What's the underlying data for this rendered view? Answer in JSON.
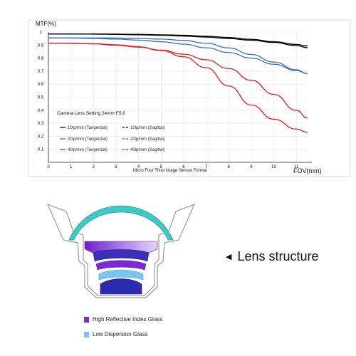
{
  "chart_data": {
    "type": "line",
    "title": "Camera Lens Setting 24mm F5.6",
    "ylabel": "MTF(%)",
    "xlabel": "FOV(mm)",
    "x_axis_caption": "Micro Four Third Image Sensor Format",
    "xlim": [
      0,
      11.5
    ],
    "ylim": [
      0,
      1
    ],
    "x_ticks": [
      "0",
      "1",
      "2",
      "3",
      "4",
      "5",
      "6",
      "7",
      "8",
      "9",
      "10",
      "11"
    ],
    "y_ticks": [
      "0.1",
      "0.2",
      "0.3",
      "0.4",
      "0.5",
      "0.6",
      "0.7",
      "0.8",
      "0.9",
      "1"
    ],
    "grid": true,
    "legend_position": "inside lower-left",
    "series": [
      {
        "name": "10lp/mm (Tangential)",
        "color": "#000000",
        "dashed": false,
        "x": [
          0,
          1,
          2,
          3,
          4,
          5,
          6,
          7,
          8,
          9,
          10,
          11,
          11.5
        ],
        "y": [
          0.985,
          0.985,
          0.984,
          0.982,
          0.979,
          0.975,
          0.969,
          0.961,
          0.95,
          0.937,
          0.92,
          0.896,
          0.88
        ]
      },
      {
        "name": "10lp/mm (Sagittal)",
        "color": "#000000",
        "dashed": true,
        "x": [
          0,
          1,
          2,
          3,
          4,
          5,
          6,
          7,
          8,
          9,
          10,
          11,
          11.5
        ],
        "y": [
          0.985,
          0.985,
          0.985,
          0.984,
          0.982,
          0.979,
          0.975,
          0.968,
          0.958,
          0.944,
          0.926,
          0.905,
          0.893
        ]
      },
      {
        "name": "20lp/mm (Tangential)",
        "color": "#3a6cc6",
        "dashed": false,
        "x": [
          0,
          1,
          2,
          3,
          4,
          5,
          6,
          7,
          8,
          9,
          10,
          11,
          11.5
        ],
        "y": [
          0.955,
          0.954,
          0.951,
          0.946,
          0.938,
          0.926,
          0.907,
          0.879,
          0.843,
          0.8,
          0.753,
          0.705,
          0.68
        ]
      },
      {
        "name": "20lp/mm (Sagittal)",
        "color": "#3a6cc6",
        "dashed": true,
        "x": [
          0,
          1,
          2,
          3,
          4,
          5,
          6,
          7,
          8,
          9,
          10,
          11,
          11.5
        ],
        "y": [
          0.955,
          0.955,
          0.955,
          0.954,
          0.951,
          0.946,
          0.936,
          0.914,
          0.878,
          0.828,
          0.77,
          0.71,
          0.68
        ]
      },
      {
        "name": "40lp/mm (Tangential)",
        "color": "#e01e1e",
        "dashed": false,
        "x": [
          0,
          1,
          2,
          3,
          4,
          5,
          6,
          7,
          8,
          9,
          10,
          11,
          11.5
        ],
        "y": [
          0.915,
          0.913,
          0.909,
          0.899,
          0.884,
          0.861,
          0.83,
          0.787,
          0.72,
          0.63,
          0.522,
          0.399,
          0.34
        ]
      },
      {
        "name": "40lp/mm (Sagittal)",
        "color": "#e01e1e",
        "dashed": true,
        "x": [
          0,
          1,
          2,
          3,
          4,
          5,
          6,
          7,
          8,
          9,
          10,
          11,
          11.5
        ],
        "y": [
          0.915,
          0.914,
          0.91,
          0.902,
          0.887,
          0.858,
          0.81,
          0.726,
          0.586,
          0.44,
          0.331,
          0.255,
          0.23
        ]
      }
    ]
  },
  "lens": {
    "structure_label": "Lens structure",
    "arrow_glyph": "◀",
    "colors": {
      "high_reflective": "#7b2ad6",
      "low_dispersion": "#7cc4f2",
      "front_element": "#3fc9c4"
    },
    "legend": [
      {
        "label": "High Reflective Index Glass",
        "color": "#7b2ad6",
        "icon": "purple-square-icon"
      },
      {
        "label": "Low Dispersion Glass",
        "color": "#7cc4f2",
        "icon": "light-blue-square-icon"
      }
    ]
  }
}
